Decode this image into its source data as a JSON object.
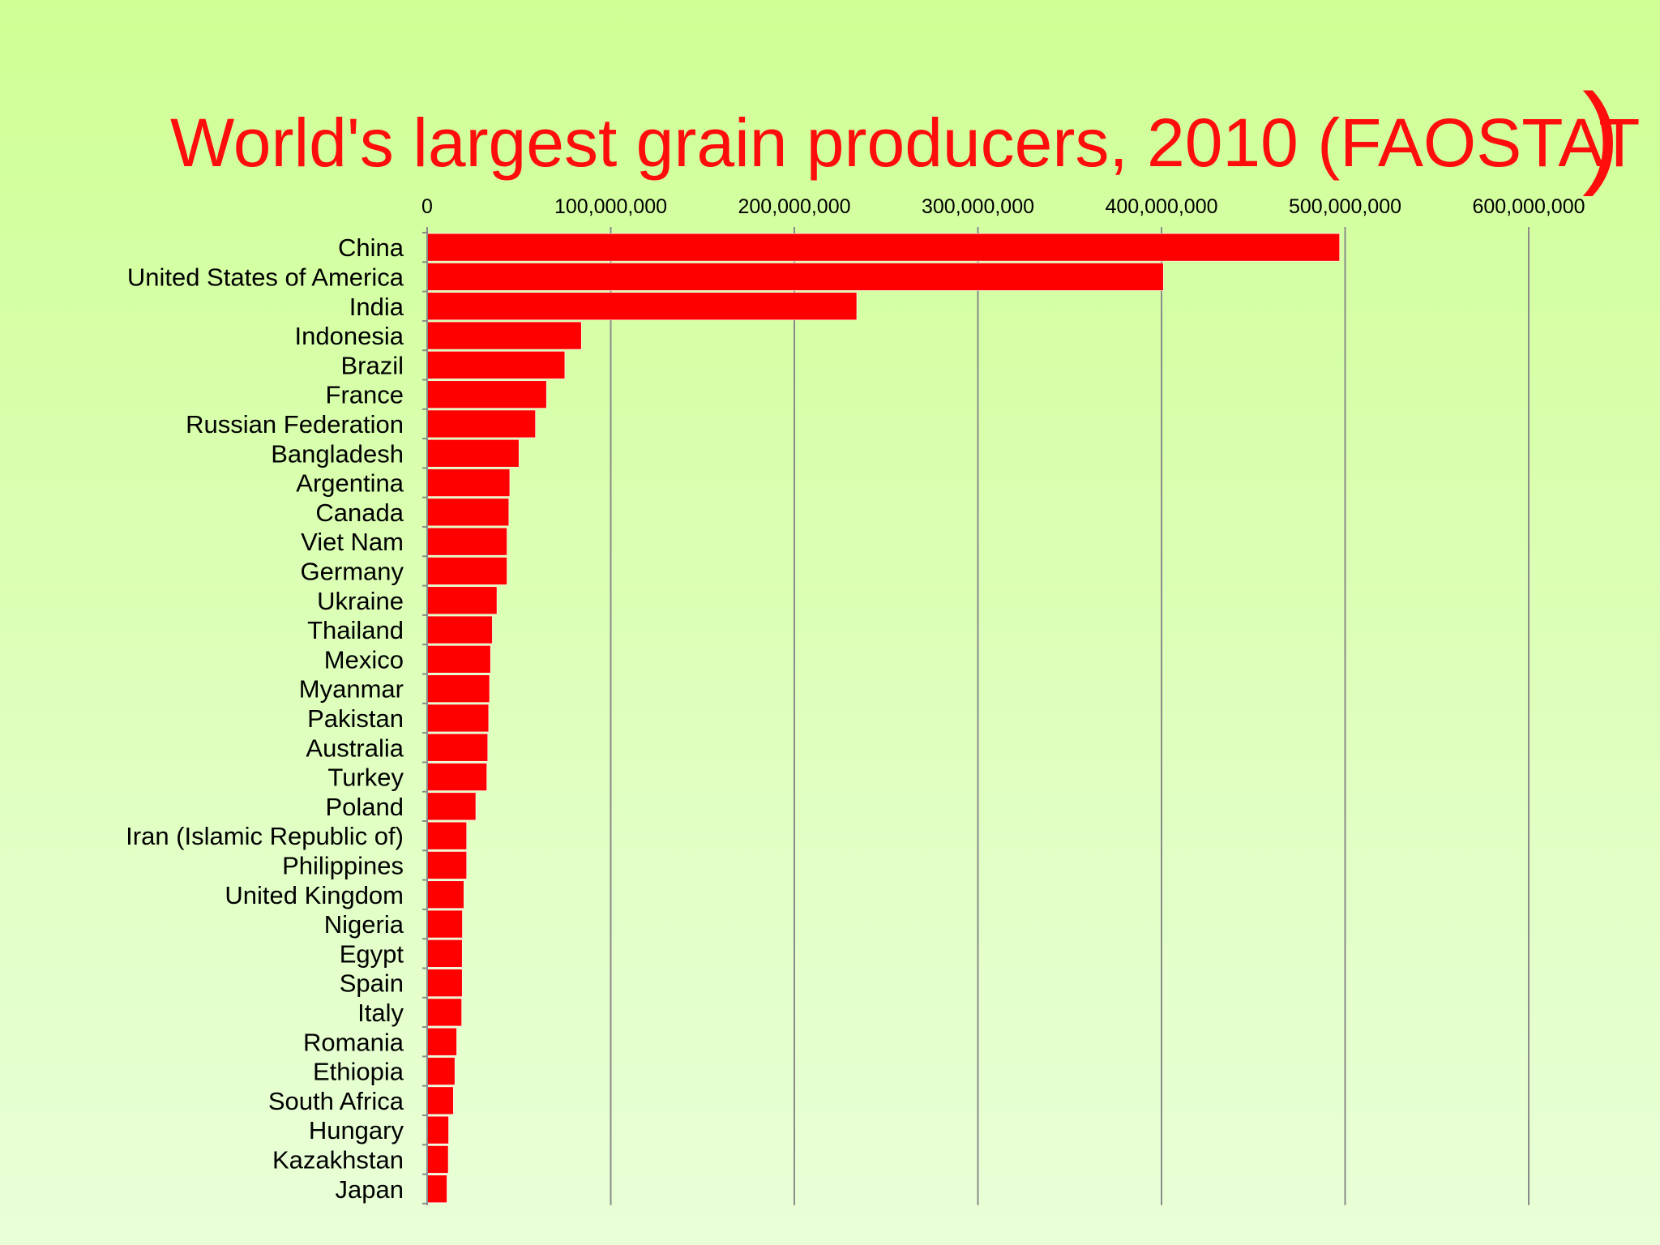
{
  "chart_data": {
    "type": "bar",
    "orientation": "horizontal",
    "title": "World's largest grain producers, 2010 (FAOSTAT",
    "title_suffix": ")",
    "xlim": [
      0,
      600000000
    ],
    "xticks": [
      0,
      100000000,
      200000000,
      300000000,
      400000000,
      500000000,
      600000000
    ],
    "xtick_labels": [
      "0",
      "100,000,000",
      "200,000,000",
      "300,000,000",
      "400,000,000",
      "500,000,000",
      "600,000,000"
    ],
    "axis_position": "top",
    "grid": true,
    "bar_color": "#ff0000",
    "title_color": "#ff0d0d",
    "categories": [
      "China",
      "United States of America",
      "India",
      "Indonesia",
      "Brazil",
      "France",
      "Russian Federation",
      "Bangladesh",
      "Argentina",
      "Canada",
      "Viet Nam",
      "Germany",
      "Ukraine",
      "Thailand",
      "Mexico",
      "Myanmar",
      "Pakistan",
      "Australia",
      "Turkey",
      "Poland",
      "Iran (Islamic Republic of)",
      "Philippines",
      "United Kingdom",
      "Nigeria",
      "Egypt",
      "Spain",
      "Italy",
      "Romania",
      "Ethiopia",
      "South Africa",
      "Hungary",
      "Kazakhstan",
      "Japan"
    ],
    "values": [
      497000000,
      401000000,
      234000000,
      84000000,
      75000000,
      65000000,
      59000000,
      50000000,
      45000000,
      44500000,
      43500000,
      43500000,
      38000000,
      35500000,
      34500000,
      34000000,
      33500000,
      33000000,
      32500000,
      26500000,
      21500000,
      21500000,
      20000000,
      19200000,
      19100000,
      19100000,
      18800000,
      16100000,
      15100000,
      14300000,
      11700000,
      11500000,
      10800000
    ]
  }
}
